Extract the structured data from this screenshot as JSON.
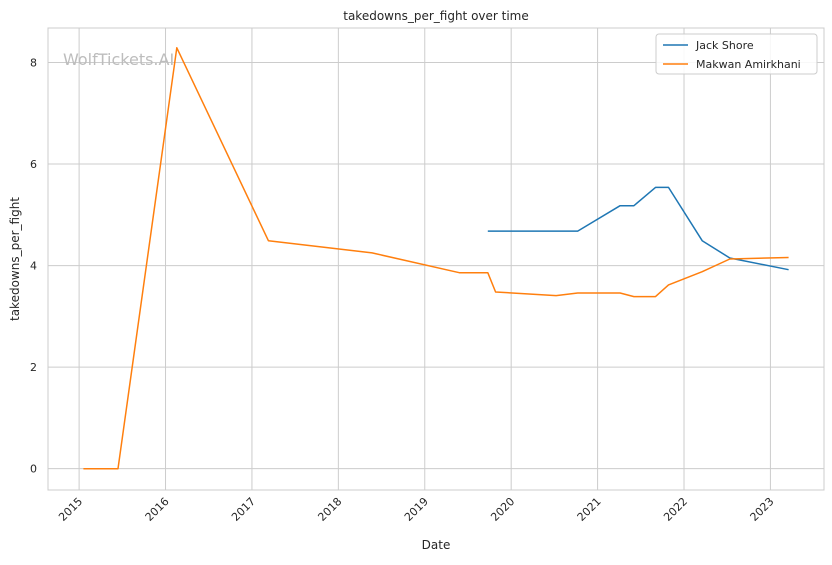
{
  "chart_data": {
    "type": "line",
    "title": "takedowns_per_fight over time",
    "xlabel": "Date",
    "ylabel": "takedowns_per_fight",
    "watermark": "WolfTickets.AI",
    "xlim": [
      2014.64,
      2023.62
    ],
    "ylim": [
      -0.42,
      8.68
    ],
    "x_ticks": [
      2015,
      2016,
      2017,
      2018,
      2019,
      2020,
      2021,
      2022,
      2023
    ],
    "x_tick_labels": [
      "2015",
      "2016",
      "2017",
      "2018",
      "2019",
      "2020",
      "2021",
      "2022",
      "2023"
    ],
    "y_ticks": [
      0,
      2,
      4,
      6,
      8
    ],
    "y_tick_labels": [
      "0",
      "2",
      "4",
      "6",
      "8"
    ],
    "grid": true,
    "legend_position": "top-right",
    "series": [
      {
        "name": "Jack Shore",
        "color": "#1f77b4",
        "x": [
          2019.73,
          2020.77,
          2021.26,
          2021.42,
          2021.67,
          2021.82,
          2022.21,
          2022.53,
          2023.21
        ],
        "y": [
          4.68,
          4.68,
          5.18,
          5.18,
          5.54,
          5.54,
          4.49,
          4.15,
          3.92
        ]
      },
      {
        "name": "Makwan Amirkhani",
        "color": "#ff7f0e",
        "x": [
          2015.05,
          2015.45,
          2016.13,
          2017.19,
          2018.39,
          2019.4,
          2019.73,
          2019.82,
          2020.52,
          2020.77,
          2021.26,
          2021.42,
          2021.67,
          2021.82,
          2022.21,
          2022.53,
          2023.21
        ],
        "y": [
          0,
          0,
          8.29,
          4.49,
          4.25,
          3.86,
          3.86,
          3.48,
          3.41,
          3.46,
          3.46,
          3.39,
          3.39,
          3.62,
          3.88,
          4.13,
          4.16
        ]
      }
    ]
  }
}
